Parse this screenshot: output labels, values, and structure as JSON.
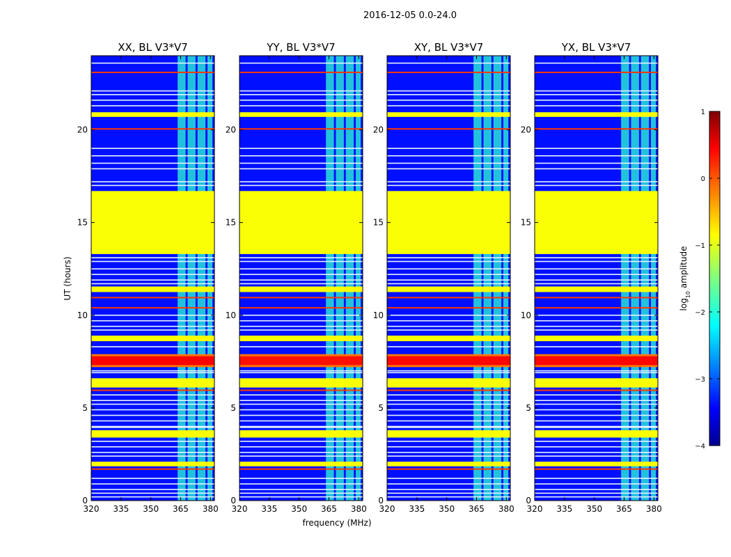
{
  "chart_data": {
    "type": "heatmap",
    "suptitle": "2016-12-05 0.0-24.0",
    "xlabel": "frequency (MHz)",
    "ylabel": "UT (hours)",
    "xlim": [
      320,
      382
    ],
    "ylim": [
      0,
      24
    ],
    "xticks": [
      320,
      335,
      350,
      365,
      380
    ],
    "xtick_labels": [
      "320",
      "335",
      "350",
      "365",
      "380"
    ],
    "yticks": [
      0,
      5,
      10,
      15,
      20
    ],
    "ytick_labels": [
      "0",
      "5",
      "10",
      "15",
      "20"
    ],
    "panels": [
      {
        "title": "XX, BL V3*V7",
        "polarization": "XX",
        "hot_band_value": 0.4
      },
      {
        "title": "YY, BL V3*V7",
        "polarization": "YY",
        "hot_band_value": 0.3
      },
      {
        "title": "XY, BL V3*V7",
        "polarization": "XY",
        "hot_band_value": 0.35
      },
      {
        "title": "YX, BL V3*V7",
        "polarization": "YX",
        "hot_band_value": 0.35
      }
    ],
    "colorbar": {
      "label": "log₁₀ amplitude",
      "label_base": "log",
      "label_sub": "10",
      "label_rest": " amplitude",
      "range": [
        -4,
        1
      ],
      "ticks": [
        1,
        0,
        -1,
        -2,
        -3,
        -4
      ],
      "tick_labels": [
        "1",
        "0",
        "−1",
        "−2",
        "−3",
        "−4"
      ],
      "colormap": "jet"
    },
    "background_level": -3.3,
    "flagged_value": -0.9,
    "flagged_blocks_hours": [
      [
        13.3,
        16.7
      ],
      [
        20.7,
        20.95
      ],
      [
        11.25,
        11.55
      ],
      [
        8.6,
        8.9
      ],
      [
        6.1,
        6.6
      ],
      [
        3.4,
        3.8
      ],
      [
        1.85,
        2.1
      ]
    ],
    "bright_lines_hours": [
      23.1,
      20.05,
      10.4,
      10.95,
      5.95,
      1.7
    ],
    "faint_lines_hours": [
      23.6,
      22.1,
      21.9,
      21.6,
      21.3,
      19.0,
      18.6,
      18.2,
      17.9,
      17.2,
      17.0,
      13.1,
      12.9,
      12.5,
      12.2,
      11.9,
      11.7,
      10.0,
      9.7,
      9.4,
      9.2,
      8.3,
      7.0,
      6.9,
      5.7,
      5.4,
      5.2,
      4.9,
      4.6,
      4.3,
      4.0,
      3.95,
      3.2,
      2.9,
      2.6,
      2.4,
      1.2,
      0.9,
      0.6,
      0.4,
      0.2
    ],
    "hot_band_hours": [
      7.2,
      7.9
    ],
    "bright_frequency_bands_mhz": [
      [
        363.5,
        367.5
      ],
      [
        368.5,
        372.5
      ],
      [
        373.5,
        377.5
      ],
      [
        378.5,
        381
      ]
    ]
  }
}
